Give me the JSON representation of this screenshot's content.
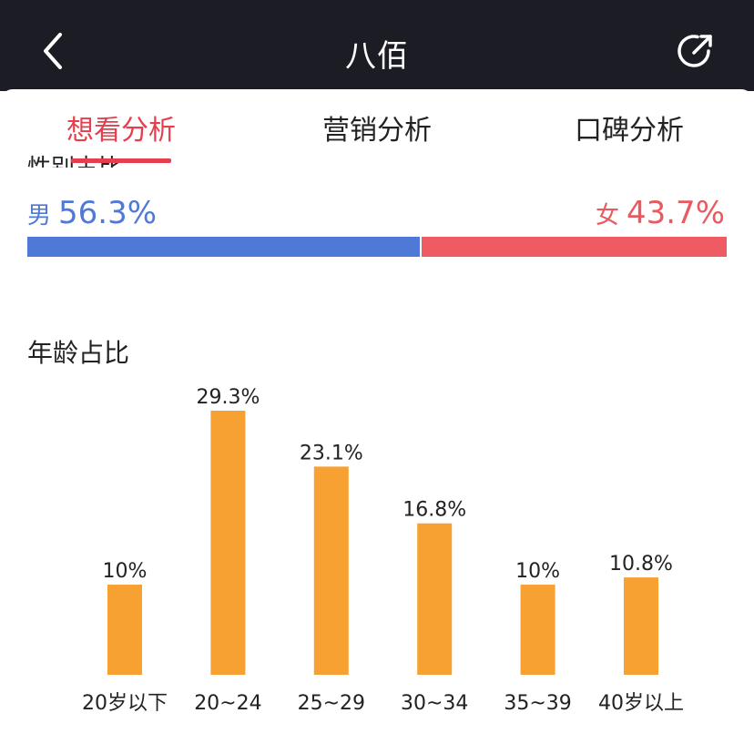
{
  "header": {
    "title": "八佰",
    "back_icon": "chevron-left-icon",
    "share_icon": "share-icon"
  },
  "tabs": [
    {
      "label": "想看分析",
      "active": true
    },
    {
      "label": "营销分析",
      "active": false
    },
    {
      "label": "口碑分析",
      "active": false
    }
  ],
  "gender": {
    "heading_peek": "性别占比",
    "male": {
      "label": "男",
      "value": "56.3%",
      "share": 56.3,
      "color": "#4f79d6"
    },
    "female": {
      "label": "女",
      "value": "43.7%",
      "share": 43.7,
      "color": "#ee5b62"
    }
  },
  "age_section": {
    "title": "年龄占比"
  },
  "chart_data": {
    "type": "bar",
    "title": "年龄占比",
    "categories": [
      "20岁以下",
      "20~24",
      "25~29",
      "30~34",
      "35~39",
      "40岁以上"
    ],
    "values": [
      10,
      29.3,
      23.1,
      16.8,
      10,
      10.8
    ],
    "value_labels": [
      "10%",
      "29.3%",
      "23.1%",
      "16.8%",
      "10%",
      "10.8%"
    ],
    "ylim": [
      0,
      29.3
    ],
    "bar_color": "#f7a133",
    "grid": false
  }
}
